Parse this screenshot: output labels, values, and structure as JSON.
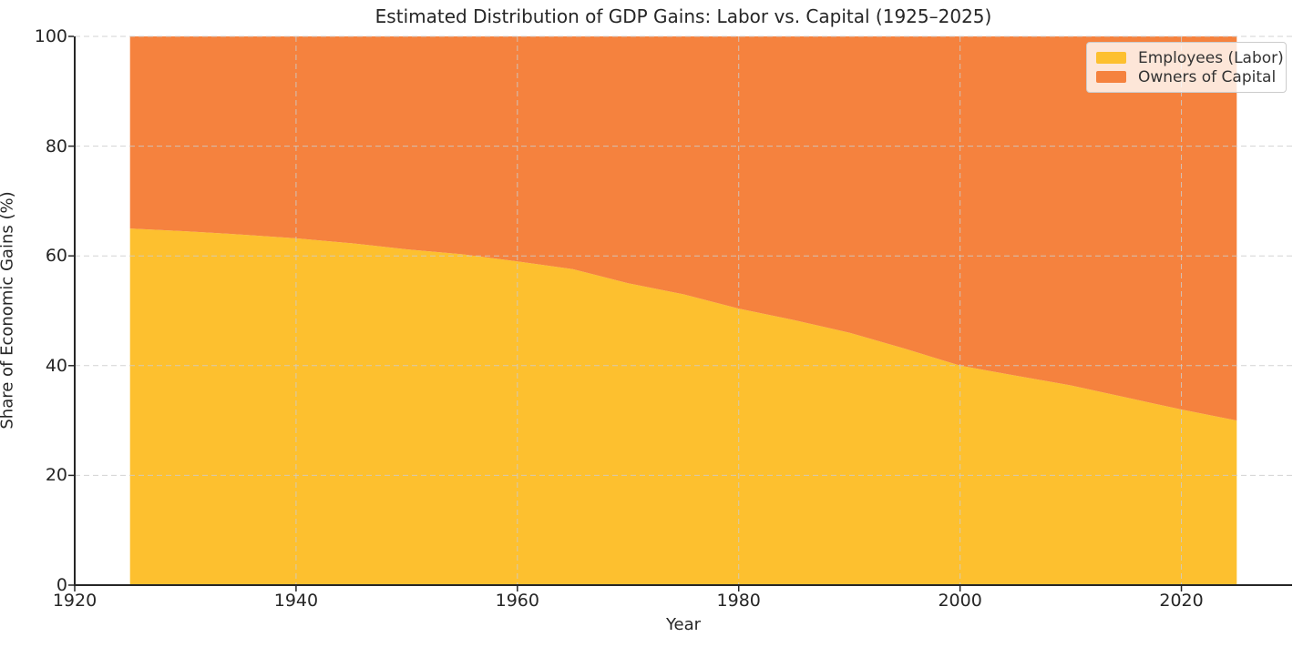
{
  "chart_data": {
    "type": "area",
    "stacked": true,
    "title": "Estimated Distribution of GDP Gains: Labor vs. Capital (1925–2025)",
    "xlabel": "Year",
    "ylabel": "Share of Economic Gains (%)",
    "x": [
      1925,
      1930,
      1935,
      1940,
      1945,
      1950,
      1955,
      1960,
      1965,
      1970,
      1975,
      1980,
      1985,
      1990,
      1995,
      2000,
      2005,
      2010,
      2015,
      2020,
      2025
    ],
    "series": [
      {
        "name": "Employees (Labor)",
        "color": "#FDC02F",
        "values": [
          65.0,
          64.5,
          63.9,
          63.2,
          62.3,
          61.2,
          60.3,
          59.0,
          57.6,
          55.0,
          53.0,
          50.4,
          48.3,
          46.0,
          43.1,
          40.0,
          38.2,
          36.4,
          34.2,
          32.0,
          30.0
        ]
      },
      {
        "name": "Owners of Capital",
        "color": "#F5823E",
        "values": [
          35.0,
          35.5,
          36.1,
          36.8,
          37.7,
          38.8,
          39.7,
          41.0,
          42.4,
          45.0,
          47.0,
          49.6,
          51.7,
          54.0,
          56.9,
          60.0,
          61.8,
          63.6,
          65.8,
          68.0,
          70.0
        ]
      }
    ],
    "xlim": [
      1920,
      2030
    ],
    "ylim": [
      0,
      100
    ],
    "xticks": [
      "1920",
      "1940",
      "1960",
      "1980",
      "2000",
      "2020"
    ],
    "xtick_values": [
      1920,
      1940,
      1960,
      1980,
      2000,
      2020
    ],
    "yticks": [
      "0",
      "20",
      "40",
      "60",
      "80",
      "100"
    ],
    "ytick_values": [
      0,
      20,
      40,
      60,
      80,
      100
    ],
    "grid": true,
    "grid_style": "dashed",
    "legend_position": "upper right"
  },
  "style": {
    "grid_color": "#cccccc",
    "spine_color": "#262626",
    "tick_color": "#262626",
    "text_color": "#262626",
    "legend_border_color": "#cccccc",
    "background_color": "#ffffff"
  }
}
